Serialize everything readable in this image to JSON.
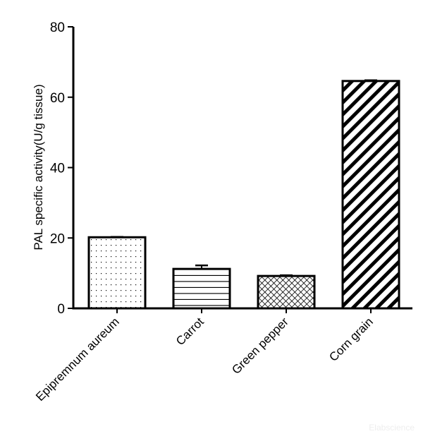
{
  "chart_data": {
    "type": "bar",
    "title": "",
    "xlabel": "",
    "ylabel": "PAL specific activity(U/g tissue)",
    "ylim": [
      0,
      80
    ],
    "yticks": [
      0,
      20,
      40,
      60,
      80
    ],
    "ytick_labels": [
      "0",
      "20",
      "40",
      "60",
      "80"
    ],
    "categories": [
      "Epipremnum aureum",
      "Carrot",
      "Green pepper",
      "Corn grain"
    ],
    "values": [
      20.2,
      11.2,
      9.2,
      64.6
    ],
    "errors": [
      0.1,
      1.0,
      0.2,
      0.2
    ],
    "patterns": [
      "dots",
      "horizontal-lines",
      "crosshatch",
      "diagonal-stripes"
    ],
    "grid": false,
    "legend": "none"
  },
  "watermark": "Elabscience"
}
